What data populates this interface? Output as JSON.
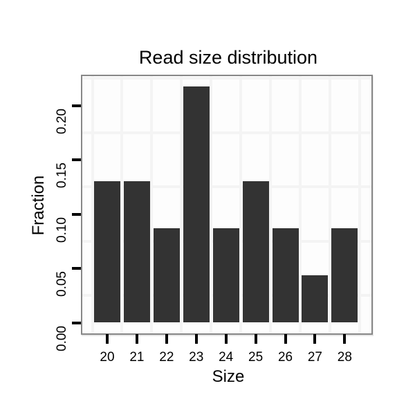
{
  "chart_data": {
    "type": "bar",
    "title": "Read size distribution",
    "xlabel": "Size",
    "ylabel": "Fraction",
    "categories": [
      "20",
      "21",
      "22",
      "23",
      "24",
      "25",
      "26",
      "27",
      "28"
    ],
    "values": [
      0.1304,
      0.1304,
      0.087,
      0.2174,
      0.087,
      0.1304,
      0.087,
      0.0435,
      0.087
    ],
    "y_ticks": [
      0.0,
      0.05,
      0.1,
      0.15,
      0.2
    ],
    "y_tick_labels": [
      "0.00",
      "0.05",
      "0.10",
      "0.15",
      "0.20"
    ],
    "ylim": [
      -0.011,
      0.228
    ],
    "grid": "minor-only",
    "minor_grid_y_step": 0.05,
    "minor_grid_y_start": 0.025,
    "legend": "none",
    "colors": {
      "bar": "#333333",
      "panel_border": "#878787",
      "gridline": "#f4f4f4",
      "background": "#ffffff",
      "text": "#000000"
    }
  }
}
